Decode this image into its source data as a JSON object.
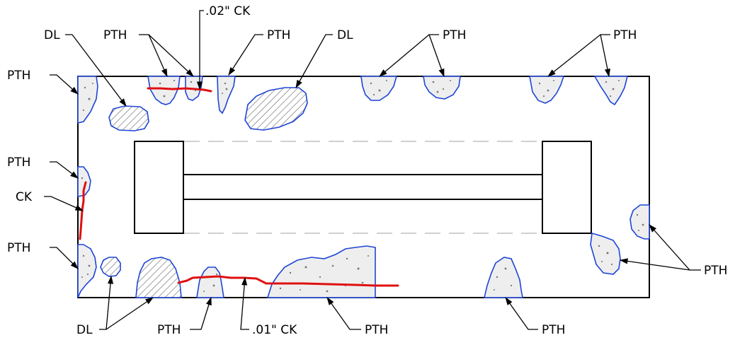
{
  "labels": {
    "pth": "PTH",
    "dl": "DL",
    "ck": "CK",
    "ck_02": ".02\" CK",
    "ck_01": ".01\" CK"
  },
  "colors": {
    "spall_outline": "#1f45d6",
    "crack": "#e01010",
    "outline": "#000000",
    "centerline": "#b5b5b5"
  }
}
